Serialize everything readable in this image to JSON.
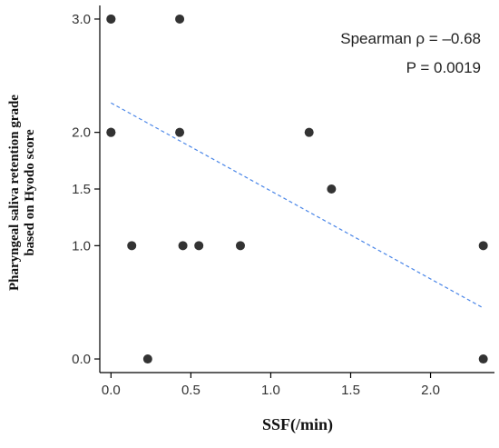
{
  "chart_data": {
    "type": "scatter",
    "xlabel": "SSF(/min)",
    "ylabel_lines": [
      "Pharyngeal saliva retention grade",
      "based on Hyodo score"
    ],
    "x_ticks": [
      {
        "value": 0,
        "label": "0.0"
      },
      {
        "value": 0.5,
        "label": "0.5"
      },
      {
        "value": 1.0,
        "label": "1.0"
      },
      {
        "value": 1.5,
        "label": "1.5"
      },
      {
        "value": 2.0,
        "label": "2.0"
      }
    ],
    "y_ticks": [
      {
        "value": 0,
        "label": "0.0"
      },
      {
        "value": 1.0,
        "label": "1.0"
      },
      {
        "value": 1.5,
        "label": "1.5"
      },
      {
        "value": 2.0,
        "label": "2.0"
      },
      {
        "value": 3.0,
        "label": "3.0"
      }
    ],
    "xlim": [
      -0.07,
      2.4
    ],
    "ylim": [
      -0.12,
      3.12
    ],
    "points": [
      {
        "x": 0.0,
        "y": 3.0
      },
      {
        "x": 0.0,
        "y": 3.0
      },
      {
        "x": 0.0,
        "y": 2.0
      },
      {
        "x": 0.0,
        "y": 2.0
      },
      {
        "x": 0.43,
        "y": 3.0
      },
      {
        "x": 0.43,
        "y": 2.0
      },
      {
        "x": 1.24,
        "y": 2.0
      },
      {
        "x": 1.38,
        "y": 1.5
      },
      {
        "x": 0.13,
        "y": 1.0
      },
      {
        "x": 0.45,
        "y": 1.0
      },
      {
        "x": 0.55,
        "y": 1.0
      },
      {
        "x": 0.81,
        "y": 1.0
      },
      {
        "x": 2.33,
        "y": 1.0
      },
      {
        "x": 0.23,
        "y": 0.0
      },
      {
        "x": 2.33,
        "y": 0.0
      }
    ],
    "trend_line": {
      "x": [
        0.0,
        2.33
      ],
      "y": [
        2.26,
        0.45
      ]
    },
    "annotations": [
      "Spearman ρ = –0.68",
      "P = 0.0019"
    ],
    "colors": {
      "points": "#333333",
      "trend": "#4a86e8",
      "axis": "#000000"
    }
  }
}
